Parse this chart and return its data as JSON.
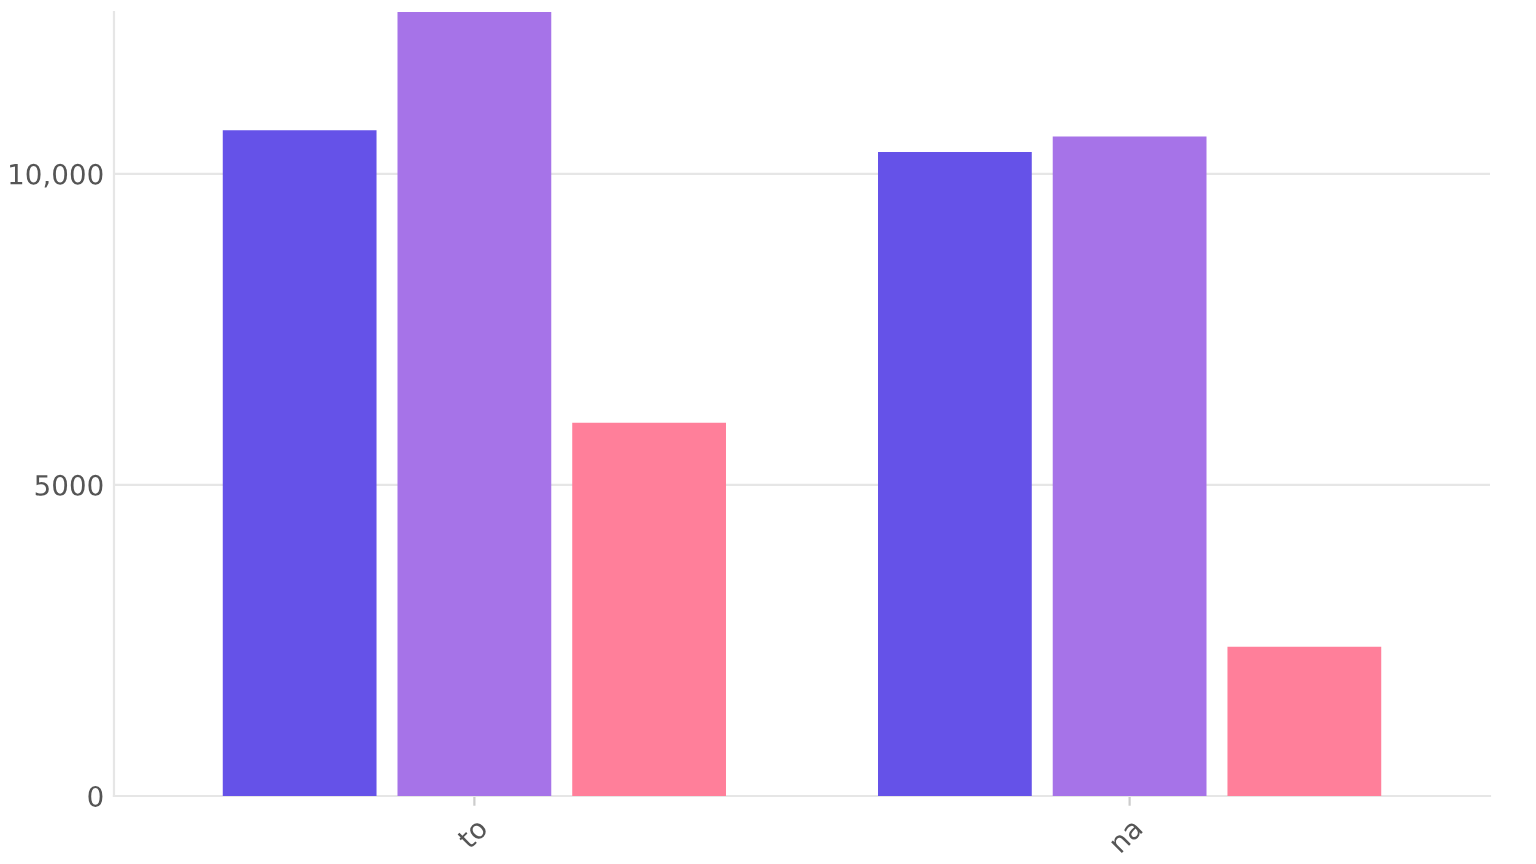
{
  "chart_data": {
    "type": "bar",
    "categories": [
      "to",
      "na"
    ],
    "series": [
      {
        "color": "#6552e8",
        "values": [
          10700,
          10350
        ]
      },
      {
        "color": "#a673e8",
        "values": [
          12600,
          10600
        ]
      },
      {
        "color": "#ff7f9a",
        "values": [
          6000,
          2400
        ]
      }
    ],
    "ylim": [
      0,
      12600
    ],
    "yticks": [
      0,
      5000,
      {
        "value": 10000,
        "label": "10,000"
      }
    ],
    "grid": "y"
  }
}
